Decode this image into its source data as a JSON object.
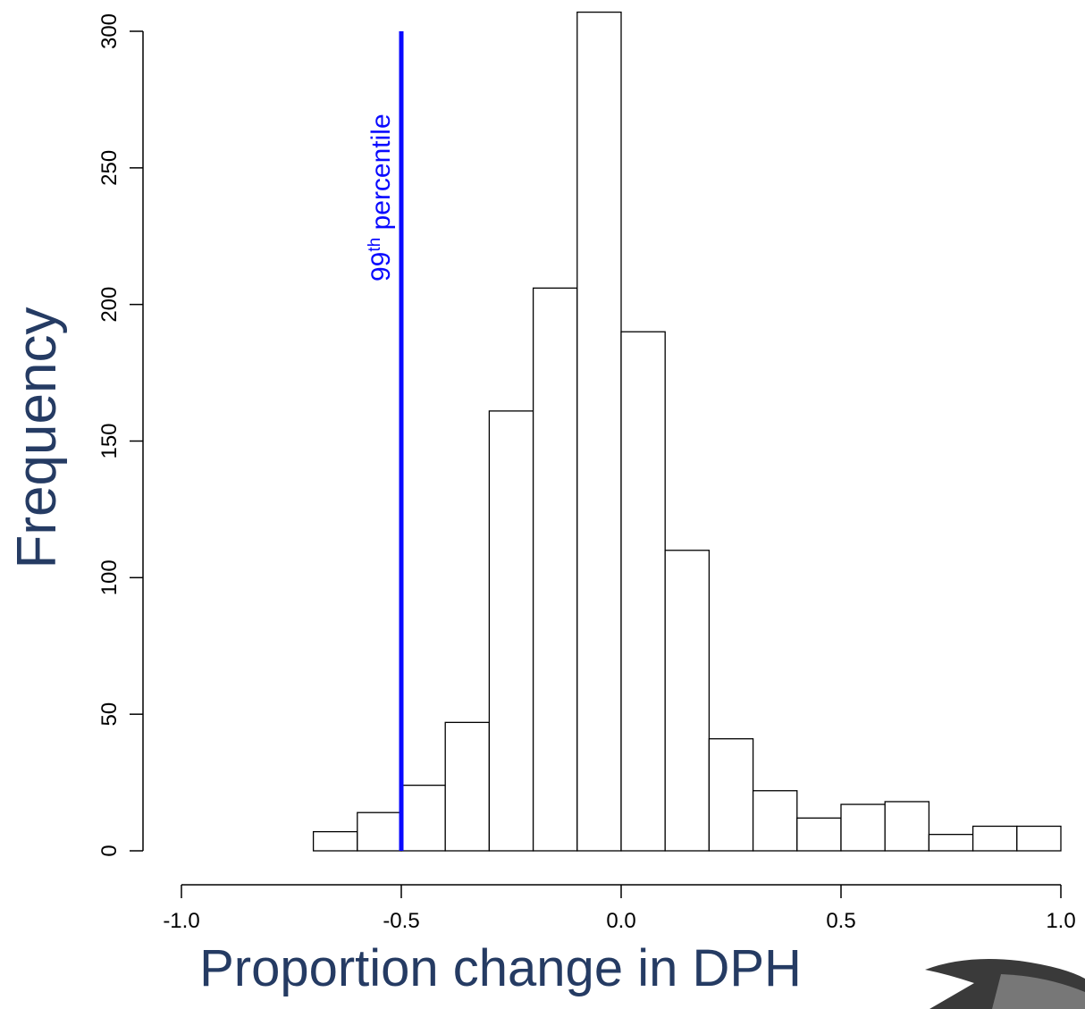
{
  "chart_data": {
    "type": "histogram",
    "x_label": "Proportion change in DPH",
    "y_label": "Frequency",
    "bins": [
      -1.0,
      -0.9,
      -0.8,
      -0.7,
      -0.6,
      -0.5,
      -0.4,
      -0.3,
      -0.2,
      -0.1,
      0.0,
      0.1,
      0.2,
      0.3,
      0.4,
      0.5,
      0.6,
      0.7,
      0.8,
      0.9,
      1.0
    ],
    "values": [
      0,
      0,
      0,
      7,
      14,
      24,
      47,
      161,
      206,
      307,
      190,
      110,
      41,
      22,
      12,
      17,
      18,
      6,
      9,
      9
    ],
    "color": "#ffffff",
    "edge_color": "#000000",
    "xlim": [
      -1.0,
      1.0
    ],
    "xticks": [
      {
        "value": -1.0,
        "label": "-1.0"
      },
      -0.5,
      {
        "value": 0.0,
        "label": "0.0"
      },
      0.5,
      {
        "value": 1.0,
        "label": "1.0"
      }
    ],
    "ylim": [
      0,
      300
    ],
    "yticks": [
      0,
      50,
      100,
      150,
      200,
      250,
      300
    ],
    "annotation": {
      "x": -0.5,
      "y": [
        0,
        300
      ],
      "color": "#0a0aff",
      "number": "99",
      "suffix": "th",
      "text": " percentile"
    }
  }
}
